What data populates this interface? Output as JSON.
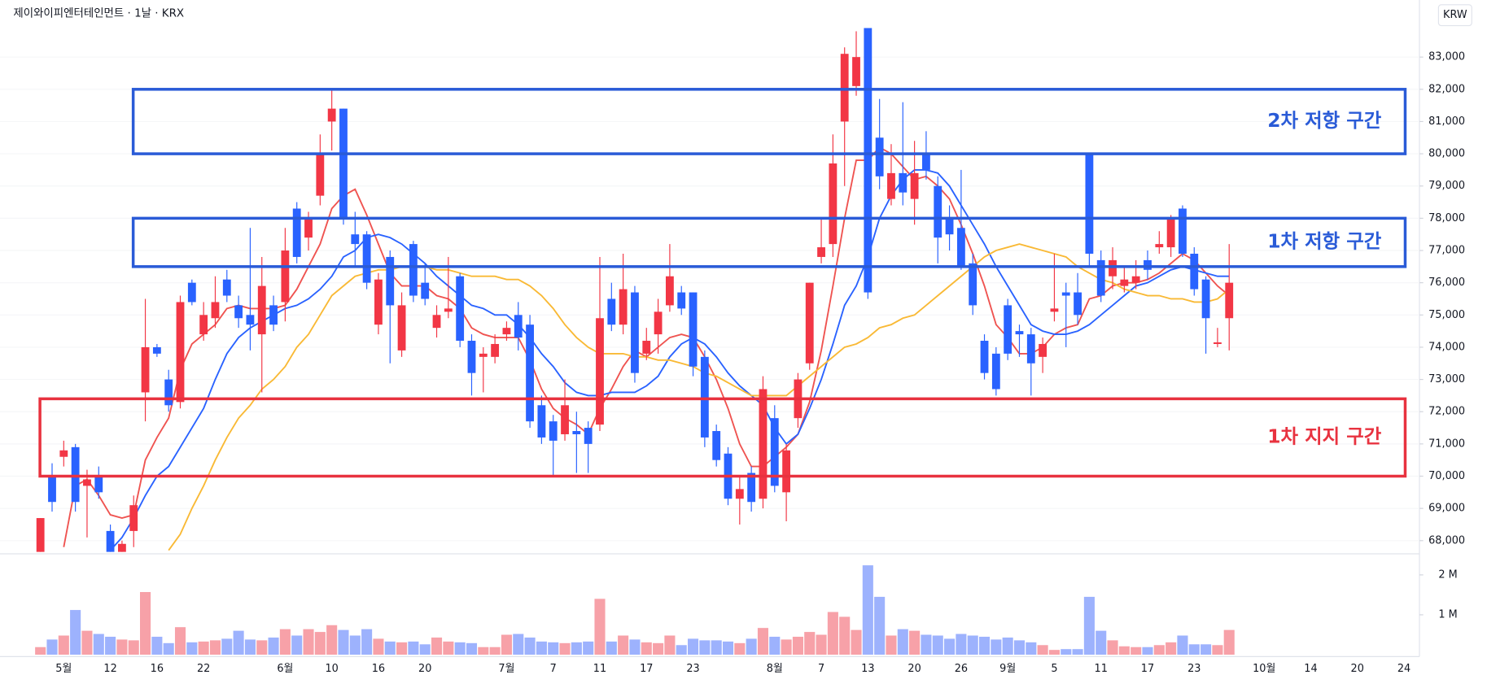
{
  "chart_data": {
    "type": "candlestick",
    "title": "제이와이피엔터테인먼트 · 1날 · KRX",
    "currency": "KRW",
    "up_color": "#f23645",
    "down_color": "#2962ff",
    "categories": [
      null,
      null,
      "5월",
      null,
      null,
      null,
      "12",
      null,
      null,
      null,
      "16",
      null,
      null,
      null,
      "22",
      null,
      null,
      null,
      null,
      null,
      null,
      "6월",
      null,
      null,
      null,
      "10",
      null,
      null,
      null,
      "16",
      null,
      null,
      null,
      "20",
      null,
      null,
      null,
      null,
      null,
      null,
      "7월",
      null,
      null,
      null,
      "7",
      null,
      null,
      null,
      "11",
      null,
      null,
      null,
      "17",
      null,
      null,
      null,
      "23",
      null,
      null,
      null,
      null,
      null,
      null,
      "8월",
      null,
      null,
      null,
      "7",
      null,
      null,
      null,
      "13",
      null,
      null,
      null,
      "20",
      null,
      null,
      null,
      "26",
      null,
      null,
      null,
      "9월",
      null,
      null,
      null,
      "5",
      null,
      null,
      null,
      "11",
      null,
      null,
      null,
      "17",
      null,
      null,
      null,
      "23",
      null,
      null,
      null,
      null,
      null,
      "10월",
      null,
      null,
      null,
      "14",
      null,
      null,
      null,
      "20",
      null,
      null,
      null,
      "24"
    ],
    "open": [
      67500,
      70000,
      70600,
      70900,
      69700,
      70000,
      68300,
      67600,
      68300,
      72600,
      74000,
      73000,
      72300,
      76000,
      74400,
      74900,
      76100,
      75300,
      75000,
      74400,
      75300,
      75400,
      78300,
      77400,
      78700,
      81000,
      81400,
      77500,
      77500,
      74700,
      76800,
      73900,
      77200,
      76000,
      74600,
      75100,
      76200,
      74200,
      73700,
      73700,
      74400,
      75000,
      74700,
      72200,
      71700,
      71300,
      71400,
      71500,
      71600,
      75500,
      74700,
      75700,
      73800,
      74400,
      75300,
      75700,
      75700,
      73700,
      71400,
      70700,
      69300,
      70100,
      69300,
      71800,
      69500,
      71800,
      73500,
      76800,
      77200,
      81000,
      82100,
      83900,
      80500,
      78600,
      79400,
      78600,
      80000,
      79000,
      78000,
      77700,
      76600,
      74200,
      73800,
      75300,
      74500,
      74400,
      73700,
      75100,
      75700,
      75700,
      80000,
      76700,
      76200,
      75900,
      76000,
      76700,
      77100,
      77100,
      78300,
      76900,
      76100,
      74100,
      74900,
      null,
      null,
      null,
      null,
      null,
      null,
      null,
      null,
      null,
      null,
      null,
      null,
      null,
      null,
      null
    ],
    "high": [
      68700,
      70400,
      71100,
      71000,
      70200,
      70300,
      68500,
      68000,
      69400,
      75500,
      74100,
      73300,
      75600,
      76100,
      75400,
      76200,
      76400,
      75600,
      77700,
      76800,
      75600,
      77700,
      78500,
      78200,
      80600,
      82000,
      81400,
      78200,
      77600,
      76300,
      77000,
      75700,
      77300,
      76600,
      75300,
      76800,
      76300,
      74400,
      74000,
      74400,
      74800,
      75400,
      75000,
      72500,
      71900,
      73000,
      72000,
      71700,
      76800,
      76000,
      76900,
      75900,
      74600,
      75500,
      77200,
      75900,
      75700,
      73900,
      71600,
      70900,
      70000,
      70300,
      73100,
      72200,
      71000,
      73200,
      76000,
      78000,
      80600,
      83300,
      83800,
      83900,
      81700,
      80300,
      81600,
      80400,
      80700,
      79300,
      78400,
      79500,
      76900,
      74400,
      74000,
      75500,
      74700,
      74600,
      74300,
      76900,
      76000,
      76300,
      80000,
      77000,
      77100,
      76500,
      76700,
      77000,
      77600,
      78100,
      78400,
      77100,
      76200,
      74600,
      77200,
      null,
      null,
      null,
      null,
      null,
      null,
      null,
      null,
      null,
      null,
      null,
      null,
      null,
      null,
      null
    ],
    "low": [
      67300,
      68900,
      70300,
      68900,
      68100,
      69300,
      67300,
      67400,
      67800,
      71700,
      73700,
      72000,
      72100,
      75300,
      74200,
      74600,
      75400,
      74600,
      73900,
      72600,
      74500,
      74800,
      76600,
      77000,
      78400,
      80100,
      77800,
      76500,
      75800,
      74400,
      73500,
      73700,
      75400,
      75300,
      74300,
      74900,
      74000,
      72500,
      72600,
      73500,
      74200,
      73900,
      71500,
      71000,
      70000,
      71100,
      70100,
      70100,
      71400,
      74500,
      74400,
      72900,
      73600,
      73800,
      75100,
      75000,
      73100,
      70900,
      70300,
      69100,
      68500,
      68900,
      69000,
      69500,
      68600,
      71500,
      73300,
      76600,
      76800,
      79000,
      81800,
      75500,
      78900,
      78400,
      78400,
      77800,
      79200,
      76600,
      77000,
      76400,
      75000,
      73000,
      72500,
      73600,
      73700,
      72500,
      73200,
      74800,
      74000,
      74700,
      76500,
      75400,
      75800,
      75700,
      75800,
      76100,
      76900,
      76800,
      76800,
      75600,
      73800,
      74000,
      73900,
      null,
      null,
      null,
      null,
      null,
      null,
      null,
      null,
      null,
      null,
      null,
      null,
      null,
      null,
      null
    ],
    "close": [
      68700,
      69200,
      70800,
      69200,
      69900,
      69500,
      67500,
      67900,
      69100,
      74000,
      73800,
      72200,
      75400,
      75400,
      75000,
      75400,
      75600,
      74900,
      74700,
      75900,
      74700,
      77000,
      76800,
      78000,
      80000,
      81400,
      78000,
      77200,
      76000,
      76100,
      75300,
      75300,
      75600,
      75500,
      75000,
      75200,
      74200,
      73200,
      73800,
      74100,
      74600,
      74300,
      71700,
      71200,
      71100,
      72200,
      71300,
      71000,
      74900,
      74700,
      75800,
      73200,
      74200,
      75100,
      76200,
      75200,
      73400,
      71200,
      70500,
      69300,
      69600,
      69200,
      72700,
      69700,
      70800,
      73000,
      76000,
      77100,
      79700,
      83100,
      83000,
      75700,
      79300,
      79400,
      78800,
      79400,
      79500,
      77400,
      77500,
      76500,
      75300,
      73200,
      72700,
      73800,
      74400,
      73500,
      74100,
      75200,
      75600,
      75000,
      76900,
      75600,
      76700,
      76100,
      76200,
      76400,
      77200,
      78000,
      76900,
      75800,
      74900,
      74150,
      76000,
      null,
      null,
      null,
      null,
      null,
      null,
      null,
      null,
      null,
      null,
      null,
      null,
      null,
      null,
      null
    ],
    "series": [
      {
        "color": "#ef5350",
        "values": [
          null,
          null,
          67800,
          69700,
          69900,
          69400,
          68800,
          68700,
          68800,
          70500,
          71200,
          71800,
          73300,
          74100,
          74400,
          74700,
          75200,
          75300,
          75200,
          75200,
          75200,
          75300,
          75800,
          76500,
          77200,
          78300,
          78700,
          78900,
          78100,
          77200,
          76300,
          75900,
          75900,
          75900,
          75600,
          75500,
          75200,
          74600,
          74400,
          74300,
          74300,
          74300,
          73600,
          72700,
          72100,
          71800,
          71600,
          71300,
          72100,
          72700,
          73400,
          73900,
          73700,
          74000,
          74300,
          74400,
          74300,
          73700,
          73000,
          72100,
          71000,
          70300,
          70300,
          70600,
          70900,
          71300,
          72300,
          73900,
          75900,
          78000,
          79800,
          79800,
          80200,
          80000,
          79600,
          79200,
          79300,
          79000,
          78600,
          77800,
          76900,
          75900,
          74700,
          74300,
          73800,
          73800,
          74000,
          74400,
          74600,
          74700,
          75500,
          75600,
          75900,
          76000,
          76000,
          76100,
          76300,
          76600,
          76900,
          76700,
          76300,
          75900,
          75600,
          null,
          null,
          null,
          null,
          null,
          null,
          null,
          null,
          null,
          null,
          null,
          null,
          null,
          null,
          null
        ]
      },
      {
        "color": "#2962ff",
        "values": [
          null,
          null,
          null,
          null,
          null,
          null,
          67700,
          68100,
          68700,
          69400,
          70000,
          70300,
          70900,
          71500,
          72100,
          73000,
          73800,
          74300,
          74600,
          74800,
          75000,
          75200,
          75300,
          75500,
          75800,
          76200,
          76800,
          77000,
          77400,
          77500,
          77400,
          77200,
          76900,
          76600,
          76200,
          75900,
          75600,
          75300,
          75200,
          75000,
          75000,
          74700,
          74300,
          73800,
          73400,
          72900,
          72600,
          72500,
          72500,
          72600,
          72600,
          72600,
          72800,
          73100,
          73700,
          74100,
          74300,
          74100,
          73700,
          73200,
          72800,
          72500,
          72200,
          71500,
          71000,
          71300,
          72100,
          73000,
          74100,
          75300,
          75900,
          76800,
          78000,
          78700,
          79200,
          79500,
          79500,
          79400,
          79000,
          78400,
          77800,
          77200,
          76500,
          75900,
          75300,
          74700,
          74500,
          74400,
          74400,
          74500,
          74700,
          75000,
          75300,
          75600,
          75900,
          76000,
          76200,
          76400,
          76500,
          76400,
          76300,
          76200,
          76200,
          null,
          null,
          null,
          null,
          null,
          null,
          null,
          null,
          null,
          null,
          null,
          null,
          null,
          null,
          null
        ]
      },
      {
        "color": "#f9b935",
        "values": [
          null,
          null,
          null,
          null,
          null,
          null,
          null,
          null,
          null,
          null,
          null,
          67700,
          68200,
          69000,
          69700,
          70500,
          71200,
          71800,
          72200,
          72700,
          73000,
          73400,
          74000,
          74400,
          75000,
          75600,
          75900,
          76200,
          76300,
          76400,
          76400,
          76500,
          76500,
          76500,
          76400,
          76400,
          76300,
          76200,
          76200,
          76200,
          76100,
          76100,
          75900,
          75600,
          75200,
          74700,
          74300,
          74000,
          73800,
          73800,
          73800,
          73700,
          73700,
          73600,
          73600,
          73500,
          73400,
          73200,
          73100,
          72900,
          72700,
          72500,
          72500,
          72500,
          72500,
          72800,
          73100,
          73400,
          73700,
          74000,
          74100,
          74300,
          74600,
          74700,
          74900,
          75000,
          75300,
          75600,
          75900,
          76200,
          76500,
          76800,
          77000,
          77100,
          77200,
          77100,
          77000,
          76900,
          76800,
          76500,
          76300,
          76100,
          76000,
          75800,
          75700,
          75600,
          75600,
          75500,
          75500,
          75400,
          75400,
          75500,
          75800,
          null,
          null,
          null,
          null,
          null,
          null,
          null,
          null,
          null,
          null,
          null,
          null,
          null,
          null,
          null
        ]
      }
    ],
    "zones": [
      {
        "label": "2차 저항 구간",
        "range": [
          80000,
          82000
        ],
        "color": "#2a5bd7"
      },
      {
        "label": "1차 저항 구간",
        "range": [
          76500,
          78000
        ],
        "color": "#2a5bd7"
      },
      {
        "label": "1차 지지 구간",
        "range": [
          70000,
          72400
        ],
        "color": "#e8323f"
      }
    ],
    "ylim": [
      67650,
      84770
    ],
    "yticks": [
      {
        "value": 68000,
        "label": "68,000"
      },
      {
        "value": 69000,
        "label": "69,000"
      },
      {
        "value": 70000,
        "label": "70,000"
      },
      {
        "value": 71000,
        "label": "71,000"
      },
      {
        "value": 72000,
        "label": "72,000"
      },
      {
        "value": 73000,
        "label": "73,000"
      },
      {
        "value": 74000,
        "label": "74,000"
      },
      {
        "value": 75000,
        "label": "75,000"
      },
      {
        "value": 76000,
        "label": "76,000"
      },
      {
        "value": 77000,
        "label": "77,000"
      },
      {
        "value": 78000,
        "label": "78,000"
      },
      {
        "value": 79000,
        "label": "79,000"
      },
      {
        "value": 80000,
        "label": "80,000"
      },
      {
        "value": 81000,
        "label": "81,000"
      },
      {
        "value": 82000,
        "label": "82,000"
      },
      {
        "value": 83000,
        "label": "83,000"
      }
    ],
    "grid": true,
    "volume": {
      "up_color": "#f7a1a8",
      "down_color": "#9db2fd",
      "values": [
        190000,
        380000,
        480000,
        1120000,
        600000,
        520000,
        450000,
        380000,
        360000,
        1570000,
        450000,
        290000,
        690000,
        310000,
        330000,
        360000,
        400000,
        600000,
        380000,
        360000,
        430000,
        640000,
        480000,
        640000,
        570000,
        740000,
        620000,
        480000,
        640000,
        400000,
        330000,
        310000,
        330000,
        260000,
        430000,
        330000,
        310000,
        290000,
        190000,
        190000,
        500000,
        520000,
        430000,
        330000,
        310000,
        290000,
        310000,
        330000,
        1400000,
        330000,
        480000,
        380000,
        310000,
        290000,
        480000,
        240000,
        400000,
        360000,
        360000,
        330000,
        290000,
        400000,
        670000,
        450000,
        380000,
        450000,
        570000,
        500000,
        1070000,
        950000,
        620000,
        2240000,
        1450000,
        480000,
        640000,
        600000,
        500000,
        480000,
        400000,
        520000,
        480000,
        450000,
        380000,
        430000,
        360000,
        310000,
        240000,
        120000,
        140000,
        140000,
        1450000,
        600000,
        360000,
        210000,
        190000,
        190000,
        240000,
        310000,
        480000,
        260000,
        260000,
        240000,
        620000,
        null,
        null,
        null,
        null,
        null,
        null,
        null,
        null,
        null,
        null,
        null,
        null,
        null,
        null,
        null
      ],
      "ylim": [
        0,
        2480000
      ],
      "yticks": [
        {
          "value": 1000000,
          "label": "1 M"
        },
        {
          "value": 2000000,
          "label": "2 M"
        }
      ]
    }
  }
}
